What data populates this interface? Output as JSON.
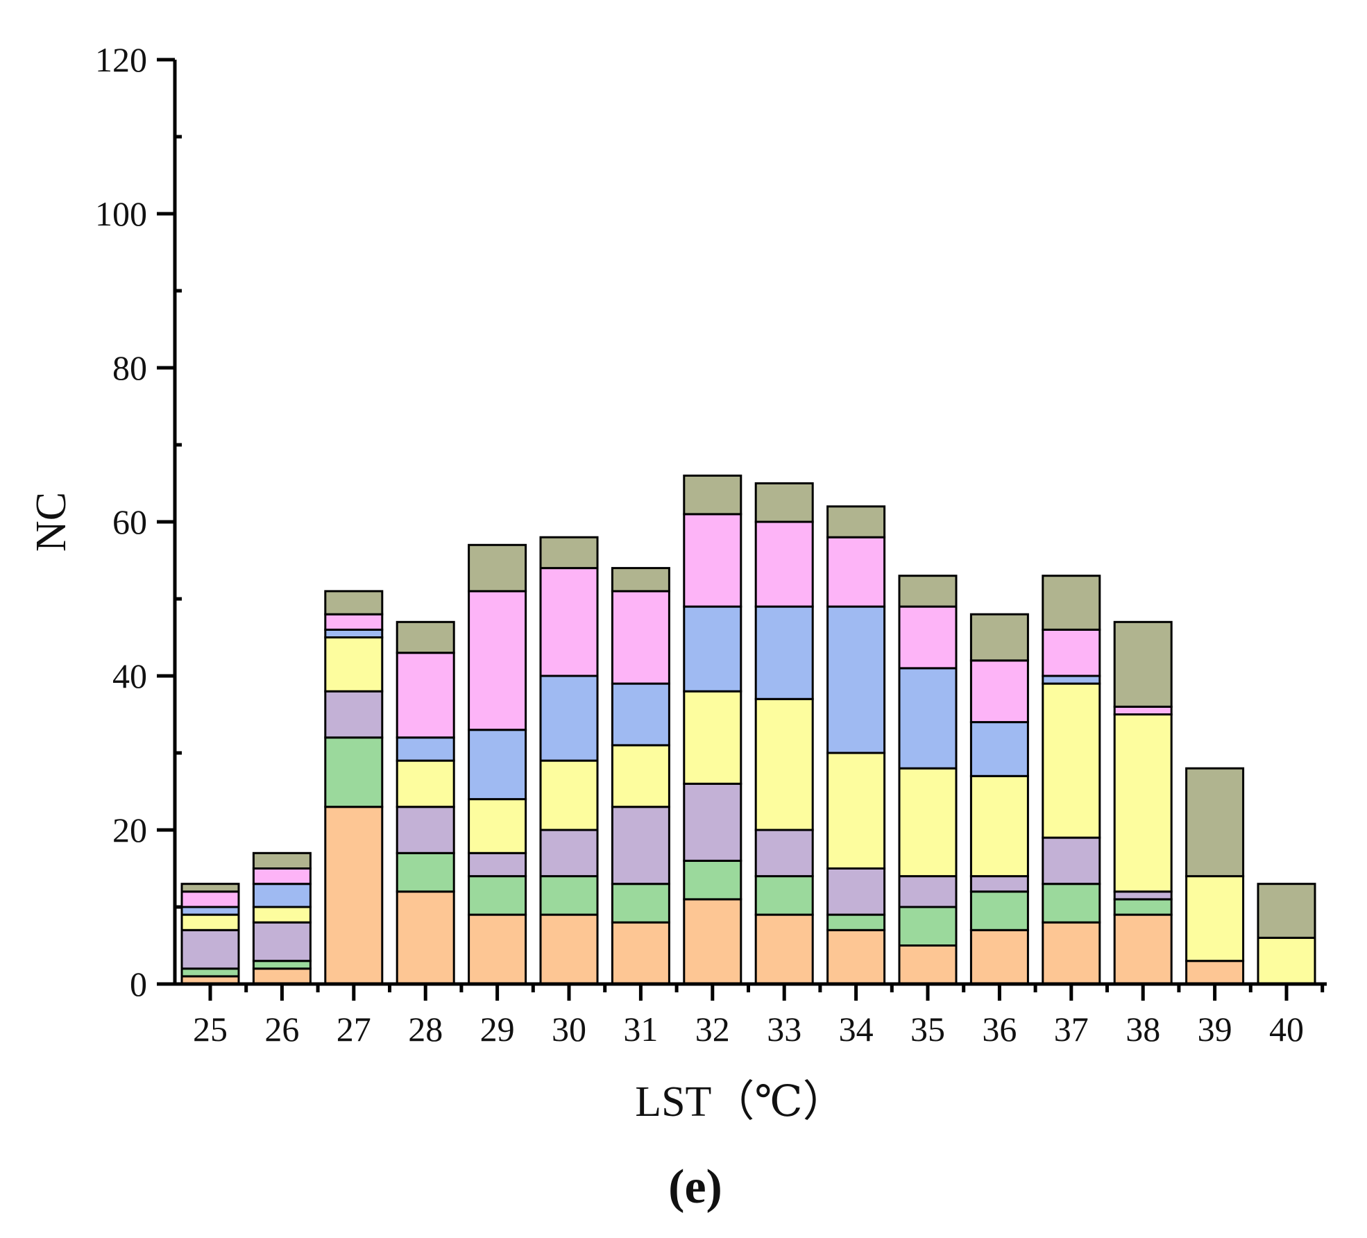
{
  "chart_data": {
    "type": "bar",
    "stacked": true,
    "title": "",
    "xlabel": "LST（℃）",
    "ylabel": "NC",
    "panel_label": "(e)",
    "categories": [
      "25",
      "26",
      "27",
      "28",
      "29",
      "30",
      "31",
      "32",
      "33",
      "34",
      "35",
      "36",
      "37",
      "38",
      "39",
      "40"
    ],
    "ylim": [
      0,
      120
    ],
    "yticks": [
      0,
      20,
      40,
      60,
      80,
      100,
      120
    ],
    "grid": false,
    "legend": "none",
    "series": [
      {
        "color": "#FDC694",
        "values": [
          1,
          2,
          23,
          12,
          9,
          9,
          8,
          11,
          9,
          7,
          5,
          7,
          8,
          9,
          3,
          0
        ]
      },
      {
        "color": "#9BD99C",
        "values": [
          1,
          1,
          9,
          5,
          5,
          5,
          5,
          5,
          5,
          2,
          5,
          5,
          5,
          2,
          0,
          0
        ]
      },
      {
        "color": "#C3B1D6",
        "values": [
          5,
          5,
          6,
          6,
          3,
          6,
          10,
          10,
          6,
          6,
          4,
          2,
          6,
          1,
          0,
          0
        ]
      },
      {
        "color": "#FDFD9E",
        "values": [
          2,
          2,
          7,
          6,
          7,
          9,
          8,
          12,
          17,
          15,
          14,
          13,
          20,
          23,
          11,
          6
        ]
      },
      {
        "color": "#9FBAF2",
        "values": [
          1,
          3,
          1,
          3,
          9,
          11,
          8,
          11,
          12,
          19,
          13,
          7,
          1,
          0,
          0,
          0
        ]
      },
      {
        "color": "#FDB4F7",
        "values": [
          2,
          2,
          2,
          11,
          18,
          14,
          12,
          12,
          11,
          9,
          8,
          8,
          6,
          1,
          0,
          0
        ]
      },
      {
        "color": "#B0B48F",
        "values": [
          1,
          2,
          3,
          4,
          6,
          4,
          3,
          5,
          5,
          4,
          4,
          6,
          7,
          11,
          14,
          7
        ]
      }
    ]
  }
}
